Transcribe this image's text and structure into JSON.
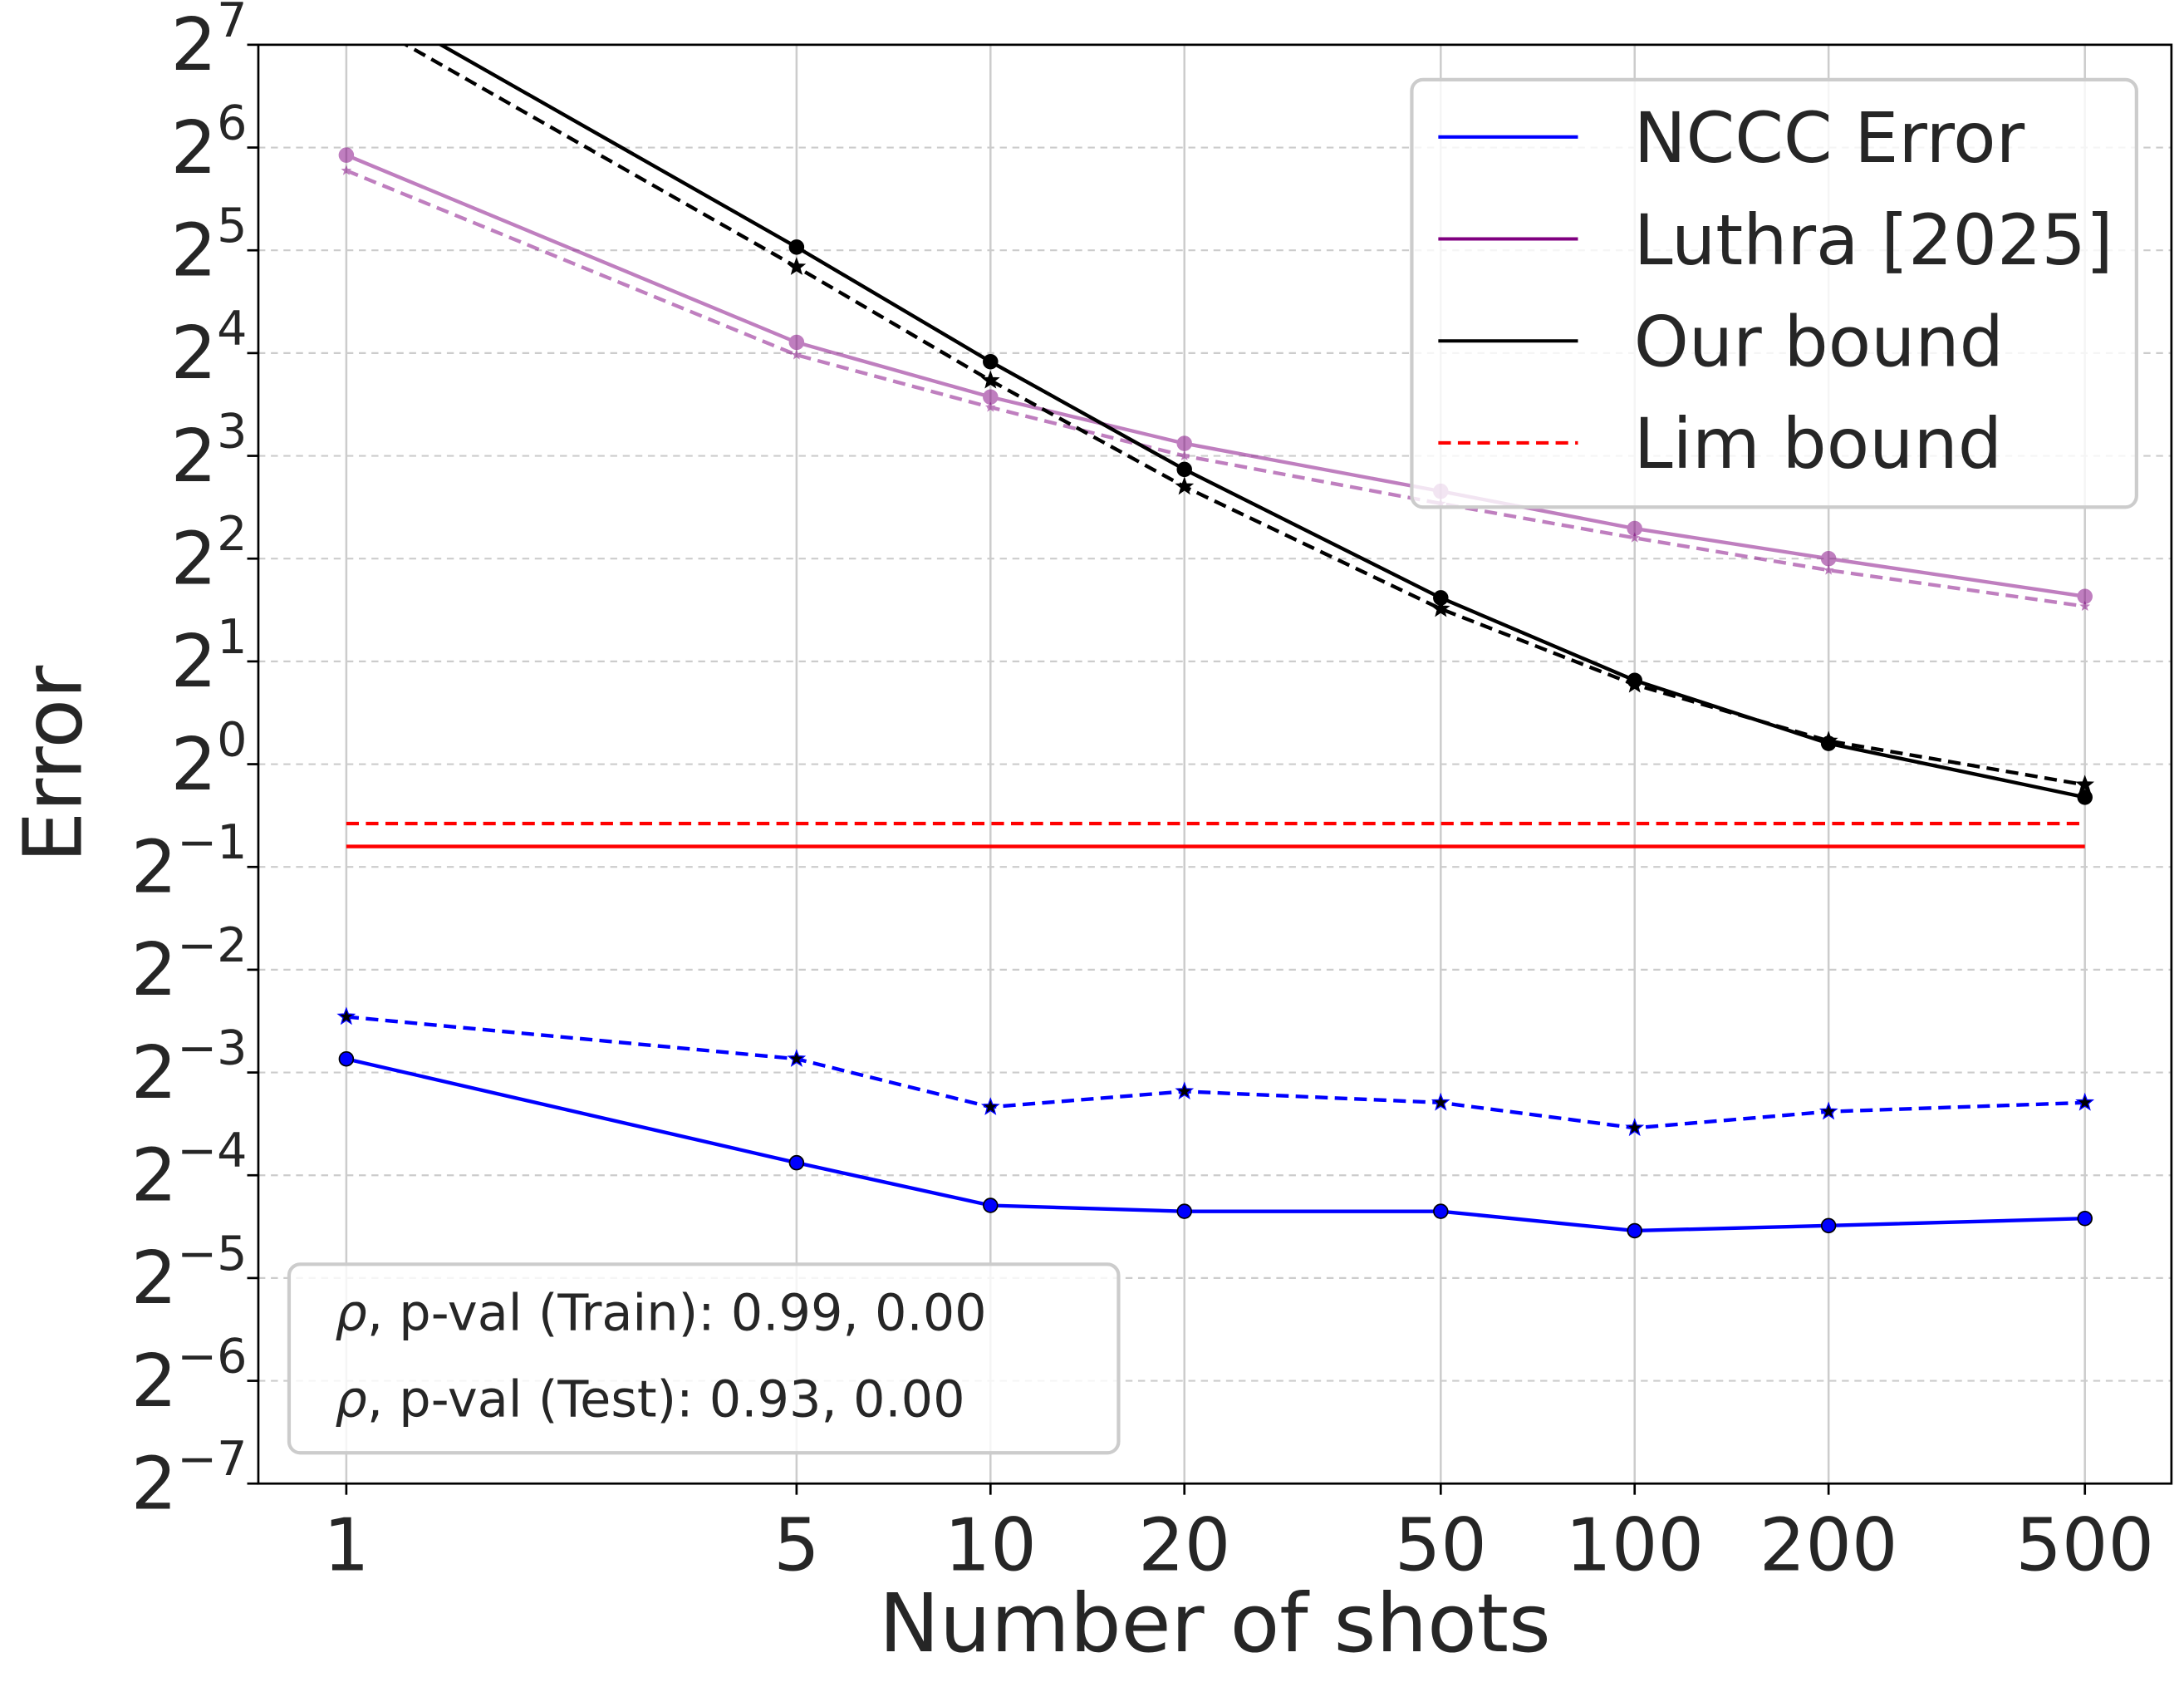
{
  "chart_data": {
    "type": "line",
    "xlabel": "Number of shots",
    "ylabel": "Error",
    "x_scale": "log",
    "y_scale": "log2",
    "x": [
      1,
      5,
      10,
      20,
      50,
      100,
      200,
      500
    ],
    "x_ticks": [
      "1",
      "5",
      "10",
      "20",
      "50",
      "100",
      "200",
      "500"
    ],
    "y_ticks_exponents": [
      -7,
      -6,
      -5,
      -4,
      -3,
      -2,
      -1,
      0,
      1,
      2,
      3,
      4,
      5,
      6,
      7
    ],
    "y_tick_base": "2",
    "ylim": [
      0.0078125,
      128
    ],
    "grid": true,
    "legend_position": "top-right",
    "series": [
      {
        "name": "NCCC Error",
        "color": "#0000ff",
        "style": "solid",
        "marker": "circle",
        "values": [
          0.137,
          0.068,
          0.051,
          0.049,
          0.049,
          0.043,
          0.0445,
          0.0467
        ]
      },
      {
        "color": "#0000ff",
        "style": "dashed",
        "marker": "star",
        "values": [
          0.182,
          0.137,
          0.099,
          0.11,
          0.102,
          0.086,
          0.096,
          0.102
        ]
      },
      {
        "name": "Luthra [2025]",
        "color": "#800080",
        "style": "solid",
        "marker": "circle",
        "alpha": 0.5,
        "values": [
          60.8,
          17.2,
          11.9,
          8.7,
          6.3,
          4.9,
          4.0,
          3.1
        ]
      },
      {
        "color": "#800080",
        "style": "dashed",
        "marker": "star",
        "alpha": 0.5,
        "values": [
          54.8,
          15.8,
          11.1,
          8.0,
          5.8,
          4.6,
          3.7,
          2.9
        ]
      },
      {
        "name": "Our bound",
        "color": "#000000",
        "style": "solid",
        "marker": "circle",
        "values": [
          184,
          32.7,
          15.1,
          7.3,
          3.07,
          1.76,
          1.15,
          0.8
        ]
      },
      {
        "color": "#000000",
        "style": "dashed",
        "marker": "star",
        "values": [
          161,
          28.6,
          13.3,
          6.5,
          2.85,
          1.71,
          1.17,
          0.87
        ]
      },
      {
        "name": "Lim bound",
        "color": "#ff0000",
        "style": "solid",
        "marker": "none",
        "values": [
          0.574,
          0.574,
          0.574,
          0.574,
          0.574,
          0.574,
          0.574,
          0.574
        ]
      },
      {
        "color": "#ff0000",
        "style": "dashed",
        "marker": "none",
        "values": [
          0.67,
          0.67,
          0.67,
          0.67,
          0.67,
          0.67,
          0.67,
          0.67
        ]
      }
    ],
    "legend": [
      {
        "label": "NCCC Error",
        "color": "#0000ff",
        "style": "solid"
      },
      {
        "label": "Luthra [2025]",
        "color": "#800080",
        "style": "solid"
      },
      {
        "label": "Our bound",
        "color": "#000000",
        "style": "solid"
      },
      {
        "label": "Lim bound",
        "color": "#ff0000",
        "style": "dashed"
      }
    ],
    "annotations": [
      {
        "symbol": "ρ",
        "text": ", p-val (Train): 0.99, 0.00"
      },
      {
        "symbol": "ρ",
        "text": ", p-val (Test): 0.93, 0.00"
      }
    ]
  }
}
